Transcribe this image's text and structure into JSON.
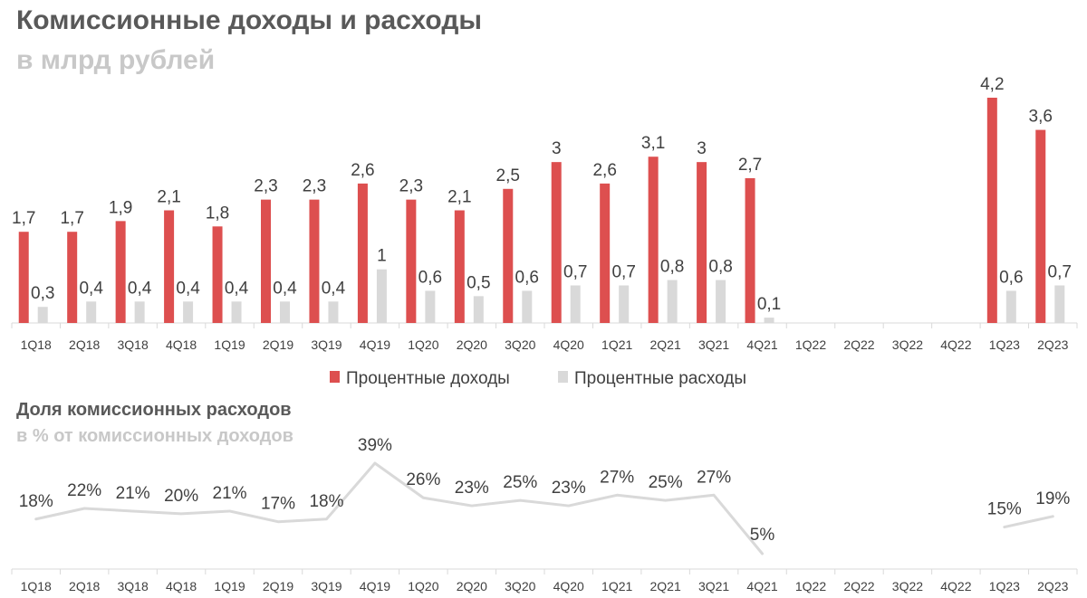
{
  "colors": {
    "income": "#dd4f4f",
    "expense": "#d9d9d9",
    "line": "#d9d9d9",
    "title": "#595959",
    "subtitle": "#c8c8c8",
    "text": "#404040"
  },
  "chart_data": [
    {
      "type": "bar",
      "title": "Комиссионные доходы и расходы",
      "subtitle": "в млрд рублей",
      "categories": [
        "1Q18",
        "2Q18",
        "3Q18",
        "4Q18",
        "1Q19",
        "2Q19",
        "3Q19",
        "4Q19",
        "1Q20",
        "2Q20",
        "3Q20",
        "4Q20",
        "1Q21",
        "2Q21",
        "3Q21",
        "4Q21",
        "1Q22",
        "2Q22",
        "3Q22",
        "4Q22",
        "1Q23",
        "2Q23"
      ],
      "series": [
        {
          "name": "Процентные доходы",
          "values": [
            1.7,
            1.7,
            1.9,
            2.1,
            1.8,
            2.3,
            2.3,
            2.6,
            2.3,
            2.1,
            2.5,
            3.0,
            2.6,
            3.1,
            3.0,
            2.7,
            null,
            null,
            null,
            null,
            4.2,
            3.6
          ],
          "labels": [
            "1,7",
            "1,7",
            "1,9",
            "2,1",
            "1,8",
            "2,3",
            "2,3",
            "2,6",
            "2,3",
            "2,1",
            "2,5",
            "3",
            "2,6",
            "3,1",
            "3",
            "2,7",
            null,
            null,
            null,
            null,
            "4,2",
            "3,6"
          ]
        },
        {
          "name": "Процентные расходы",
          "values": [
            0.3,
            0.4,
            0.4,
            0.4,
            0.4,
            0.4,
            0.4,
            1.0,
            0.6,
            0.5,
            0.6,
            0.7,
            0.7,
            0.8,
            0.8,
            0.1,
            null,
            null,
            null,
            null,
            0.6,
            0.7
          ],
          "labels": [
            "0,3",
            "0,4",
            "0,4",
            "0,4",
            "0,4",
            "0,4",
            "0,4",
            "1",
            "0,6",
            "0,5",
            "0,6",
            "0,7",
            "0,7",
            "0,8",
            "0,8",
            "0,1",
            null,
            null,
            null,
            null,
            "0,6",
            "0,7"
          ]
        }
      ],
      "ylim": [
        0,
        4.2
      ],
      "legend": "bottom-center",
      "grid": false
    },
    {
      "type": "line",
      "title": "Доля комиссионных расходов",
      "subtitle": "в % от комиссионных доходов",
      "categories": [
        "1Q18",
        "2Q18",
        "3Q18",
        "4Q18",
        "1Q19",
        "2Q19",
        "3Q19",
        "4Q19",
        "1Q20",
        "2Q20",
        "3Q20",
        "4Q20",
        "1Q21",
        "2Q21",
        "3Q21",
        "4Q21",
        "1Q22",
        "2Q22",
        "3Q22",
        "4Q22",
        "1Q23",
        "2Q23"
      ],
      "series": [
        {
          "values": [
            18,
            22,
            21,
            20,
            21,
            17,
            18,
            39,
            26,
            23,
            25,
            23,
            27,
            25,
            27,
            5,
            null,
            null,
            null,
            null,
            15,
            19
          ],
          "labels": [
            "18%",
            "22%",
            "21%",
            "20%",
            "21%",
            "17%",
            "18%",
            "39%",
            "26%",
            "23%",
            "25%",
            "23%",
            "27%",
            "25%",
            "27%",
            "5%",
            null,
            null,
            null,
            null,
            "15%",
            "19%"
          ]
        }
      ],
      "ylim": [
        0,
        39
      ],
      "grid": false
    }
  ]
}
